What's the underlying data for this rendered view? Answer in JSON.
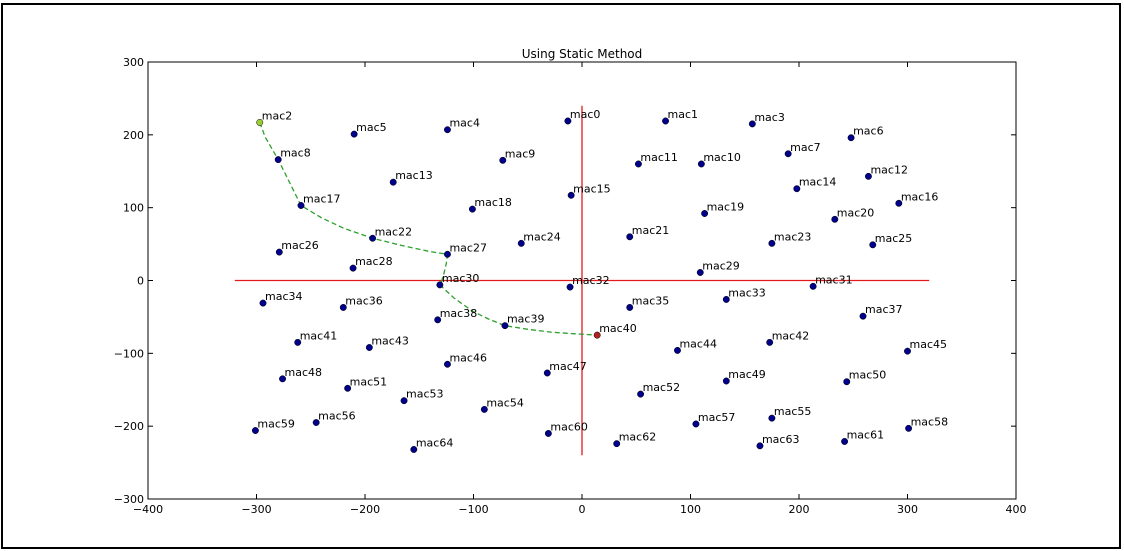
{
  "chart_data": {
    "type": "scatter",
    "title": "Using Static Method",
    "xlabel": "",
    "ylabel": "",
    "xlim": [
      -400,
      400
    ],
    "ylim": [
      -300,
      300
    ],
    "xticks": [
      -400,
      -300,
      -200,
      -100,
      0,
      100,
      200,
      300,
      400
    ],
    "yticks": [
      -300,
      -200,
      -100,
      0,
      100,
      200,
      300
    ],
    "xtick_labels": [
      "−400",
      "−300",
      "−200",
      "−100",
      "0",
      "100",
      "200",
      "300",
      "400"
    ],
    "ytick_labels": [
      "−300",
      "−200",
      "−100",
      "0",
      "100",
      "200",
      "300"
    ],
    "grid": false,
    "colors": {
      "point": "#00008b",
      "start": "#9acd32",
      "end": "#b22222",
      "axes_cross": "#e31a1c",
      "path": "#2ca02c"
    },
    "points": [
      {
        "label": "mac0",
        "x": -13,
        "y": 219
      },
      {
        "label": "mac1",
        "x": 77,
        "y": 219
      },
      {
        "label": "mac2",
        "x": -297,
        "y": 217,
        "role": "start"
      },
      {
        "label": "mac3",
        "x": 157,
        "y": 215
      },
      {
        "label": "mac4",
        "x": -124,
        "y": 207
      },
      {
        "label": "mac5",
        "x": -210,
        "y": 201
      },
      {
        "label": "mac6",
        "x": 248,
        "y": 196
      },
      {
        "label": "mac7",
        "x": 190,
        "y": 174
      },
      {
        "label": "mac8",
        "x": -280,
        "y": 166
      },
      {
        "label": "mac9",
        "x": -73,
        "y": 165
      },
      {
        "label": "mac10",
        "x": 110,
        "y": 160
      },
      {
        "label": "mac11",
        "x": 52,
        "y": 160
      },
      {
        "label": "mac12",
        "x": 264,
        "y": 143
      },
      {
        "label": "mac13",
        "x": -174,
        "y": 135
      },
      {
        "label": "mac14",
        "x": 198,
        "y": 126
      },
      {
        "label": "mac15",
        "x": -10,
        "y": 117
      },
      {
        "label": "mac16",
        "x": 292,
        "y": 106
      },
      {
        "label": "mac17",
        "x": -259,
        "y": 103
      },
      {
        "label": "mac18",
        "x": -101,
        "y": 98
      },
      {
        "label": "mac19",
        "x": 113,
        "y": 92
      },
      {
        "label": "mac20",
        "x": 233,
        "y": 84
      },
      {
        "label": "mac21",
        "x": 44,
        "y": 60
      },
      {
        "label": "mac22",
        "x": -193,
        "y": 58
      },
      {
        "label": "mac23",
        "x": 175,
        "y": 51
      },
      {
        "label": "mac24",
        "x": -56,
        "y": 51
      },
      {
        "label": "mac25",
        "x": 268,
        "y": 49
      },
      {
        "label": "mac26",
        "x": -279,
        "y": 39
      },
      {
        "label": "mac27",
        "x": -124,
        "y": 36
      },
      {
        "label": "mac28",
        "x": -211,
        "y": 17
      },
      {
        "label": "mac29",
        "x": 109,
        "y": 11
      },
      {
        "label": "mac30",
        "x": -131,
        "y": -6
      },
      {
        "label": "mac31",
        "x": 213,
        "y": -8
      },
      {
        "label": "mac32",
        "x": -11,
        "y": -9
      },
      {
        "label": "mac33",
        "x": 133,
        "y": -26
      },
      {
        "label": "mac34",
        "x": -294,
        "y": -31
      },
      {
        "label": "mac35",
        "x": 44,
        "y": -37
      },
      {
        "label": "mac36",
        "x": -220,
        "y": -37
      },
      {
        "label": "mac37",
        "x": 259,
        "y": -49
      },
      {
        "label": "mac38",
        "x": -133,
        "y": -54
      },
      {
        "label": "mac39",
        "x": -71,
        "y": -62
      },
      {
        "label": "mac40",
        "x": 14,
        "y": -75,
        "role": "end"
      },
      {
        "label": "mac41",
        "x": -262,
        "y": -85
      },
      {
        "label": "mac42",
        "x": 173,
        "y": -85
      },
      {
        "label": "mac43",
        "x": -196,
        "y": -92
      },
      {
        "label": "mac44",
        "x": 88,
        "y": -96
      },
      {
        "label": "mac45",
        "x": 300,
        "y": -97
      },
      {
        "label": "mac46",
        "x": -124,
        "y": -115
      },
      {
        "label": "mac47",
        "x": -32,
        "y": -127
      },
      {
        "label": "mac48",
        "x": -276,
        "y": -135
      },
      {
        "label": "mac49",
        "x": 133,
        "y": -138
      },
      {
        "label": "mac50",
        "x": 244,
        "y": -139
      },
      {
        "label": "mac51",
        "x": -216,
        "y": -148
      },
      {
        "label": "mac52",
        "x": 54,
        "y": -156
      },
      {
        "label": "mac53",
        "x": -164,
        "y": -165
      },
      {
        "label": "mac54",
        "x": -90,
        "y": -177
      },
      {
        "label": "mac55",
        "x": 175,
        "y": -189
      },
      {
        "label": "mac56",
        "x": -245,
        "y": -195
      },
      {
        "label": "mac57",
        "x": 105,
        "y": -197
      },
      {
        "label": "mac58",
        "x": 301,
        "y": -203
      },
      {
        "label": "mac59",
        "x": -301,
        "y": -206
      },
      {
        "label": "mac60",
        "x": -31,
        "y": -210
      },
      {
        "label": "mac61",
        "x": 242,
        "y": -221
      },
      {
        "label": "mac62",
        "x": 32,
        "y": -224
      },
      {
        "label": "mac63",
        "x": 164,
        "y": -227
      },
      {
        "label": "mac64",
        "x": -155,
        "y": -232
      }
    ],
    "axes_cross": {
      "horizontal": {
        "x": [
          -320,
          320
        ],
        "y": 0
      },
      "vertical": {
        "x": 0,
        "y": [
          -240,
          240
        ]
      }
    },
    "path": {
      "style": "dashed",
      "x": [
        -297,
        -292,
        -280,
        -259,
        -240,
        -220,
        -193,
        -166,
        -141,
        -124,
        -125,
        -127,
        -129,
        -131,
        -118,
        -101,
        -86,
        -71,
        -50,
        -28,
        -8,
        14
      ],
      "y": [
        217,
        197,
        166,
        103,
        86,
        72,
        58,
        48,
        40,
        36,
        24,
        11,
        1,
        -6,
        -24,
        -42,
        -53,
        -62,
        -67,
        -71,
        -73,
        -75
      ]
    }
  }
}
